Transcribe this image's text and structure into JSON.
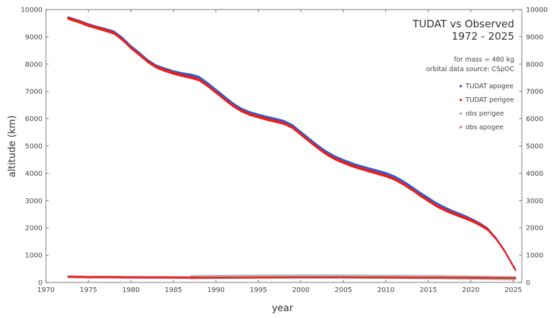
{
  "chart_data": {
    "type": "scatter",
    "title": "TUDAT vs Observed",
    "subtitle": "1972 - 2025",
    "annotations": [
      "for mass = 480 kg",
      "orbital data source: CSpOC"
    ],
    "xlabel": "year",
    "ylabel": "altitude (km)",
    "xlim": [
      1970,
      2026
    ],
    "ylim": [
      0,
      10000
    ],
    "x_ticks": [
      1970,
      1975,
      1980,
      1985,
      1990,
      1995,
      2000,
      2005,
      2010,
      2015,
      2020,
      2025
    ],
    "y_ticks": [
      0,
      1000,
      2000,
      3000,
      4000,
      5000,
      6000,
      7000,
      8000,
      9000,
      10000
    ],
    "y_ticks_right": true,
    "grid": false,
    "legend_position": "top-right",
    "series": [
      {
        "name": "TUDAT apogee",
        "color": "#2b5fd9",
        "x": [
          1972.6,
          1974,
          1975,
          1976,
          1977,
          1978,
          1979,
          1980,
          1981,
          1982,
          1983,
          1984,
          1985,
          1986,
          1987,
          1988,
          1989,
          1990,
          1991,
          1992,
          1993,
          1994,
          1995,
          1996,
          1997,
          1998,
          1999,
          2000,
          2001,
          2002,
          2003,
          2004,
          2005,
          2006,
          2007,
          2008,
          2009,
          2010,
          2011,
          2012,
          2013,
          2014,
          2015,
          2016,
          2017,
          2018,
          2019,
          2020,
          2021,
          2022,
          2023,
          2024,
          2025,
          2025.3
        ],
        "y": [
          9700,
          9560,
          9440,
          9350,
          9270,
          9180,
          8950,
          8650,
          8400,
          8130,
          7930,
          7820,
          7720,
          7650,
          7600,
          7520,
          7300,
          7050,
          6800,
          6550,
          6350,
          6220,
          6130,
          6050,
          5980,
          5900,
          5750,
          5500,
          5250,
          5000,
          4780,
          4600,
          4470,
          4350,
          4250,
          4160,
          4080,
          3990,
          3870,
          3700,
          3500,
          3280,
          3080,
          2880,
          2720,
          2580,
          2460,
          2320,
          2160,
          1960,
          1600,
          1150,
          600,
          450
        ]
      },
      {
        "name": "TUDAT perigee",
        "color": "#e8201c",
        "x": [
          1972.6,
          1974,
          1975,
          1976,
          1977,
          1978,
          1979,
          1980,
          1981,
          1982,
          1983,
          1984,
          1985,
          1986,
          1987,
          1988,
          1989,
          1990,
          1991,
          1992,
          1993,
          1994,
          1995,
          1996,
          1997,
          1998,
          1999,
          2000,
          2001,
          2002,
          2003,
          2004,
          2005,
          2006,
          2007,
          2008,
          2009,
          2010,
          2011,
          2012,
          2013,
          2014,
          2015,
          2016,
          2017,
          2018,
          2019,
          2020,
          2021,
          2022,
          2023,
          2024,
          2025,
          2025.3
        ],
        "y": [
          9680,
          9540,
          9420,
          9330,
          9240,
          9140,
          8900,
          8600,
          8350,
          8090,
          7890,
          7770,
          7670,
          7590,
          7520,
          7430,
          7220,
          6970,
          6720,
          6480,
          6290,
          6160,
          6070,
          5980,
          5910,
          5830,
          5680,
          5430,
          5180,
          4930,
          4710,
          4530,
          4400,
          4280,
          4180,
          4090,
          4000,
          3910,
          3790,
          3620,
          3420,
          3200,
          3000,
          2800,
          2650,
          2520,
          2400,
          2280,
          2130,
          1940,
          1590,
          1140,
          590,
          440
        ]
      },
      {
        "name": "obs perigee",
        "color": "#a6a6a6",
        "x": [
          1987,
          1990,
          1995,
          2000,
          2005,
          2010,
          2015,
          2020,
          2025.3
        ],
        "y": [
          190,
          200,
          210,
          215,
          215,
          205,
          195,
          180,
          150
        ]
      },
      {
        "name": "obs apogee",
        "color": "#c07890",
        "x": [
          1972.6,
          1975,
          1980,
          1985,
          1988
        ],
        "y": [
          210,
          195,
          185,
          180,
          175
        ]
      }
    ],
    "low_line": {
      "color": "#e8201c",
      "x": [
        1972.6,
        1975,
        1978,
        1980,
        1983,
        1985,
        1988,
        1990,
        1995,
        2000,
        2005,
        2010,
        2015,
        2020,
        2025.3
      ],
      "y": [
        210,
        195,
        200,
        185,
        190,
        180,
        175,
        175,
        180,
        185,
        185,
        180,
        175,
        170,
        160
      ]
    }
  }
}
